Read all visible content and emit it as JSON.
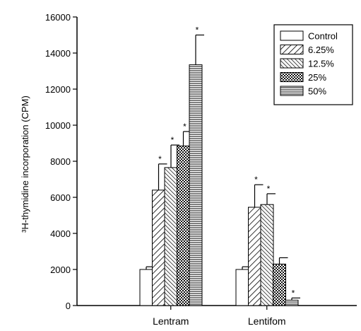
{
  "chart_data": {
    "type": "bar",
    "ylabel": "³H-thymidine incorporation (CPM)",
    "ylim": [
      0,
      16000
    ],
    "y_ticks": [
      0,
      2000,
      4000,
      6000,
      8000,
      10000,
      12000,
      14000,
      16000
    ],
    "y_tick_labels": [
      "0",
      "2000",
      "4000",
      "6000",
      "8000",
      "10000",
      "12000",
      "14000",
      "16000"
    ],
    "categories": [
      "Lentram",
      "Lentifom"
    ],
    "series": [
      {
        "name": "Control",
        "pattern": "plain",
        "values": [
          2000,
          2000
        ],
        "errors": [
          150,
          150
        ],
        "significant": [
          false,
          false
        ]
      },
      {
        "name": "6.25%",
        "pattern": "diag",
        "values": [
          6400,
          5450
        ],
        "errors": [
          1450,
          1250
        ],
        "significant": [
          true,
          true
        ]
      },
      {
        "name": "12.5%",
        "pattern": "diag-dense",
        "values": [
          7650,
          5600
        ],
        "errors": [
          1250,
          600
        ],
        "significant": [
          true,
          true
        ]
      },
      {
        "name": "25%",
        "pattern": "cross",
        "values": [
          8850,
          2300
        ],
        "errors": [
          800,
          350
        ],
        "significant": [
          true,
          false
        ]
      },
      {
        "name": "50%",
        "pattern": "horizontal",
        "values": [
          13350,
          300
        ],
        "errors": [
          1650,
          120
        ],
        "significant": [
          true,
          true
        ]
      }
    ],
    "significance_marker": "*",
    "legend_position": "top-right",
    "grid": false
  }
}
